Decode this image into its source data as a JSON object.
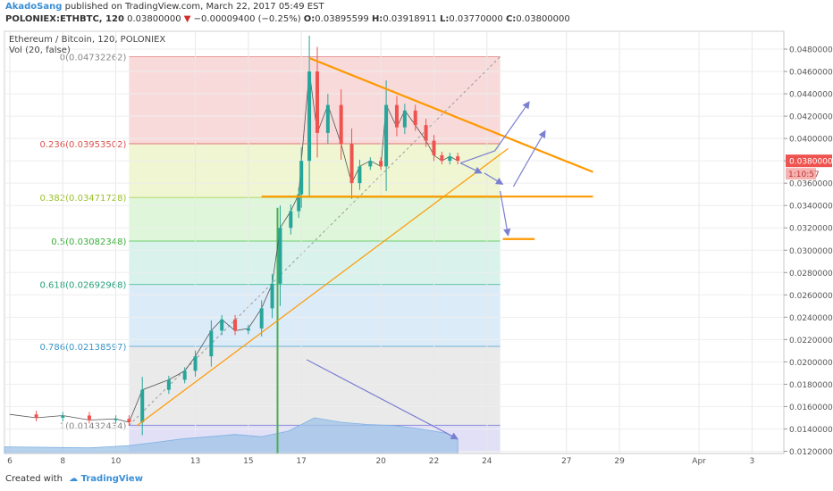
{
  "header": {
    "author": "AkadoSang",
    "published_text": "published on TradingView.com, March 22, 2017 05:49 EST",
    "symbol_line": "POLONIEX:ETHBTC, 120",
    "last_price": "0.03800000",
    "change_arrow": "▼",
    "change": "−0.00009400 (−0.25%)",
    "o_label": "O:",
    "o_value": "0.03895599",
    "h_label": "H:",
    "h_value": "0.03918911",
    "l_label": "L:",
    "l_value": "0.03770000",
    "c_label": "C:",
    "c_value": "0.03800000"
  },
  "legend": {
    "series_title": "Ethereum / Bitcoin, 120, POLONIEX",
    "volume_label": "Vol (20, false)"
  },
  "footer": {
    "created_with": "Created with",
    "brand": "TradingView"
  },
  "colors": {
    "up": "#26a69a",
    "down": "#ef5350",
    "trendline": "#ff9800",
    "arrow": "#7b7fd1",
    "volume": "#9fc3e7",
    "price_tag": "#ef5350"
  },
  "chart_data": {
    "type": "candlestick",
    "x_ticks": [
      "6",
      "8",
      "10",
      "13",
      "15",
      "17",
      "20",
      "22",
      "24",
      "27",
      "29",
      "Apr",
      "3"
    ],
    "x_tick_days": [
      6,
      8,
      10,
      13,
      15,
      17,
      20,
      22,
      24,
      27,
      29,
      32,
      34
    ],
    "x_range_days": [
      5.8,
      35.2
    ],
    "y_ticks": [
      "0.04800000",
      "0.04600000",
      "0.04400000",
      "0.04200000",
      "0.04000000",
      "0.03800000",
      "0.03600000",
      "0.03400000",
      "0.03200000",
      "0.03000000",
      "0.02800000",
      "0.02600000",
      "0.02400000",
      "0.02200000",
      "0.02000000",
      "0.01800000",
      "0.01600000",
      "0.01400000",
      "0.01200000"
    ],
    "y_range": [
      0.0118,
      0.0496
    ],
    "current_price": "0.03800000",
    "countdown": "1:10:57",
    "fib_levels": [
      {
        "ratio": "0",
        "price": 0.04732262,
        "label": "0(0.04732262)",
        "fill": "#f7d4d3",
        "line": "#e79a98",
        "text": "#888888"
      },
      {
        "ratio": "0.236",
        "price": 0.03953502,
        "label": "0.236(0.03953502)",
        "fill": "#ecf5c9",
        "line": "#e07878",
        "text": "#d9534f"
      },
      {
        "ratio": "0.382",
        "price": 0.03471728,
        "label": "0.382(0.03471728)",
        "fill": "#d9f4d4",
        "line": "#b6d86a",
        "text": "#9bbf2e"
      },
      {
        "ratio": "0.5",
        "price": 0.03082348,
        "label": "0.5(0.03082348)",
        "fill": "#d2f1e9",
        "line": "#6ccf6c",
        "text": "#3cae3c"
      },
      {
        "ratio": "0.618",
        "price": 0.02692968,
        "label": "0.618(0.02692968)",
        "fill": "#d6e8f7",
        "line": "#5fc6a6",
        "text": "#27a07a"
      },
      {
        "ratio": "0.786",
        "price": 0.02138597,
        "label": "0.786(0.02138597)",
        "fill": "#e6e6e6",
        "line": "#6fb3d8",
        "text": "#3a96c7"
      },
      {
        "ratio": "1",
        "price": 0.01432434,
        "label": "1(0.01432434)",
        "fill": "#dcdaf6",
        "line": "#8e8edb",
        "text": "#888888"
      }
    ],
    "fib_span_days": [
      10.5,
      24.5
    ],
    "fib_bottom_price": 0.0119,
    "price_path": [
      [
        6.0,
        0.0153
      ],
      [
        7.0,
        0.015
      ],
      [
        8.0,
        0.0152
      ],
      [
        9.0,
        0.0148
      ],
      [
        10.0,
        0.0149
      ],
      [
        10.5,
        0.0146
      ],
      [
        11.0,
        0.0175
      ],
      [
        12.0,
        0.0184
      ],
      [
        12.6,
        0.0192
      ],
      [
        13.0,
        0.0205
      ],
      [
        13.6,
        0.0228
      ],
      [
        14.0,
        0.0238
      ],
      [
        14.5,
        0.0228
      ],
      [
        15.0,
        0.023
      ],
      [
        15.5,
        0.0248
      ],
      [
        15.9,
        0.027
      ],
      [
        16.2,
        0.032
      ],
      [
        16.6,
        0.0335
      ],
      [
        16.9,
        0.035
      ],
      [
        17.0,
        0.038
      ],
      [
        17.3,
        0.046
      ],
      [
        17.6,
        0.0405
      ],
      [
        18.0,
        0.043
      ],
      [
        18.5,
        0.0395
      ],
      [
        18.9,
        0.036
      ],
      [
        19.2,
        0.0375
      ],
      [
        19.6,
        0.038
      ],
      [
        20.0,
        0.0375
      ],
      [
        20.2,
        0.043
      ],
      [
        20.6,
        0.041
      ],
      [
        20.9,
        0.0425
      ],
      [
        21.3,
        0.0412
      ],
      [
        21.7,
        0.0398
      ],
      [
        22.0,
        0.0385
      ],
      [
        22.3,
        0.038
      ],
      [
        22.6,
        0.0384
      ],
      [
        22.9,
        0.038
      ]
    ],
    "volume_series": [
      [
        5.8,
        0.0124
      ],
      [
        9.0,
        0.0123
      ],
      [
        10.5,
        0.0125
      ],
      [
        11.5,
        0.0128
      ],
      [
        12.5,
        0.0131
      ],
      [
        13.5,
        0.0133
      ],
      [
        14.5,
        0.0135
      ],
      [
        15.5,
        0.0133
      ],
      [
        16.5,
        0.0138
      ],
      [
        17.5,
        0.015
      ],
      [
        18.5,
        0.0146
      ],
      [
        19.5,
        0.0144
      ],
      [
        20.5,
        0.0143
      ],
      [
        21.5,
        0.014
      ],
      [
        22.5,
        0.0136
      ],
      [
        22.9,
        0.013
      ]
    ],
    "trendlines": [
      {
        "from": [
          17.3,
          0.0472
        ],
        "to": [
          28.0,
          0.037
        ]
      },
      {
        "from": [
          10.8,
          0.0143
        ],
        "to": [
          24.8,
          0.0391
        ]
      },
      {
        "from": [
          15.5,
          0.0348
        ],
        "to": [
          28.0,
          0.0348
        ]
      },
      {
        "from": [
          24.6,
          0.031
        ],
        "to": [
          25.8,
          0.031
        ]
      }
    ],
    "diagonal": {
      "from": [
        10.5,
        0.01432434
      ],
      "to": [
        24.5,
        0.04732262
      ]
    },
    "projection_arrows": [
      {
        "from": [
          23.0,
          0.0378
        ],
        "to": [
          24.3,
          0.0389
        ],
        "head": false
      },
      {
        "from": [
          24.3,
          0.0389
        ],
        "to": [
          25.6,
          0.0433
        ],
        "head": true
      },
      {
        "from": [
          23.0,
          0.0378
        ],
        "to": [
          23.8,
          0.0369
        ],
        "head": true
      },
      {
        "from": [
          23.9,
          0.0369
        ],
        "to": [
          24.6,
          0.0359
        ],
        "head": true
      },
      {
        "from": [
          25.0,
          0.0357
        ],
        "to": [
          26.2,
          0.0407
        ],
        "head": true
      },
      {
        "from": [
          24.5,
          0.0353
        ],
        "to": [
          24.8,
          0.0313
        ],
        "head": true
      },
      {
        "from": [
          17.2,
          0.0202
        ],
        "to": [
          22.9,
          0.0131
        ],
        "head": true
      }
    ],
    "highlight_day": 16.1
  }
}
